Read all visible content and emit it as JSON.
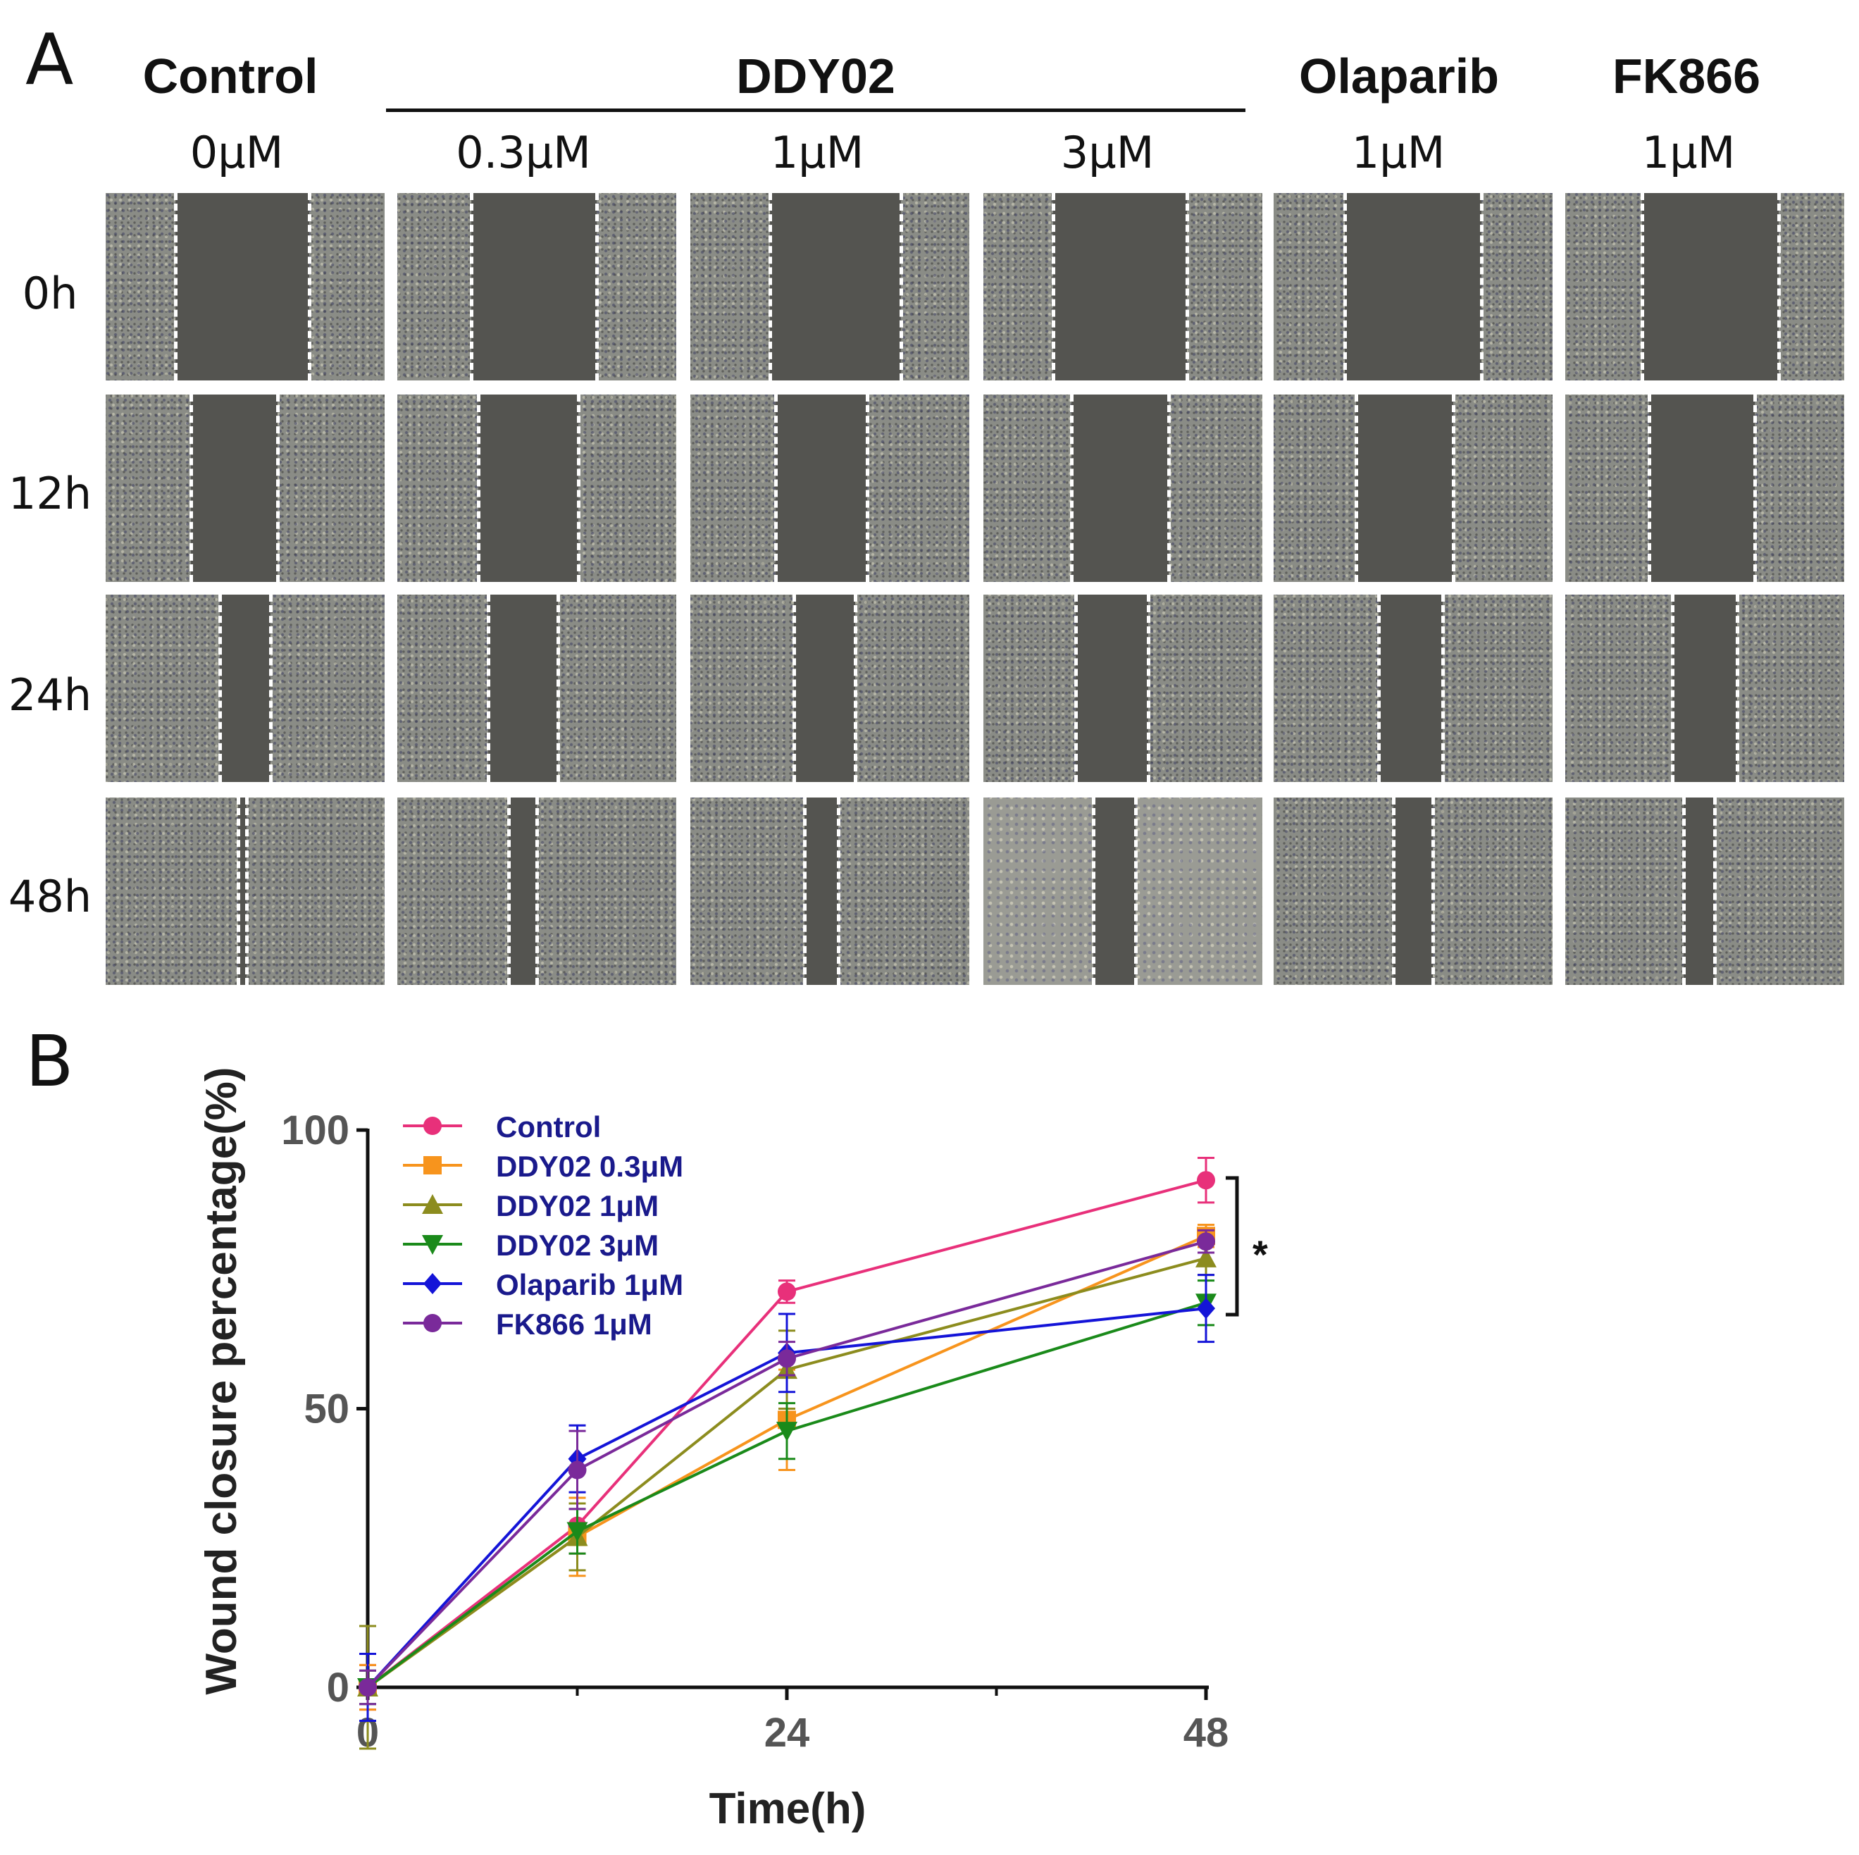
{
  "panel_a": {
    "letter": "A",
    "columns": [
      {
        "group": "Control",
        "concentration": "0μM"
      },
      {
        "group": "DDY02",
        "concentration": "0.3μM"
      },
      {
        "group": "DDY02",
        "concentration": "1μM"
      },
      {
        "group": "DDY02",
        "concentration": "3μM"
      },
      {
        "group": "Olaparib",
        "concentration": "1μM"
      },
      {
        "group": "FK866",
        "concentration": "1μM"
      }
    ],
    "headers": {
      "control": "Control",
      "ddy02": "DDY02",
      "olaparib": "Olaparib",
      "fk866": "FK866"
    },
    "concentrations": [
      "0μM",
      "0.3μM",
      "1μM",
      "3μM",
      "1μM",
      "1μM"
    ],
    "rows": [
      "0h",
      "12h",
      "24h",
      "48h"
    ],
    "wound_gap_fraction": [
      [
        0.48,
        0.45,
        0.47,
        0.48,
        0.49,
        0.49
      ],
      [
        0.31,
        0.36,
        0.33,
        0.35,
        0.35,
        0.38
      ],
      [
        0.18,
        0.25,
        0.22,
        0.26,
        0.23,
        0.23
      ],
      [
        0.03,
        0.1,
        0.12,
        0.15,
        0.14,
        0.11
      ]
    ],
    "wound_center_fraction": [
      [
        0.49,
        0.49,
        0.52,
        0.49,
        0.5,
        0.52
      ],
      [
        0.46,
        0.47,
        0.47,
        0.49,
        0.47,
        0.49
      ],
      [
        0.5,
        0.45,
        0.48,
        0.46,
        0.49,
        0.5
      ],
      [
        0.49,
        0.45,
        0.47,
        0.47,
        0.5,
        0.48
      ]
    ]
  },
  "panel_b": {
    "letter": "B",
    "significance": "*"
  },
  "chart_data": {
    "type": "line",
    "title": "",
    "xlabel": "Time(h)",
    "ylabel": "Wound closure percentage(%)",
    "xlim": [
      0,
      48
    ],
    "ylim": [
      0,
      100
    ],
    "x_ticks": [
      0,
      24,
      48
    ],
    "x_minor_ticks": [
      12,
      36
    ],
    "y_ticks": [
      0,
      50,
      100
    ],
    "x": [
      0,
      12,
      24,
      48
    ],
    "legend_position": "top-left",
    "series": [
      {
        "name": "Control",
        "color": "#e8307a",
        "marker": "circle",
        "values": [
          0,
          29,
          71,
          91
        ],
        "errors": [
          4,
          5,
          2,
          4
        ]
      },
      {
        "name": "DDY02 0.3μM",
        "color": "#f7941d",
        "marker": "square",
        "values": [
          0,
          27,
          48,
          81
        ],
        "errors": [
          4,
          7,
          9,
          2
        ]
      },
      {
        "name": "DDY02 1μM",
        "color": "#8c8c1e",
        "marker": "triangle-up",
        "values": [
          0,
          27,
          57,
          77
        ],
        "errors": [
          11,
          6,
          7,
          3
        ]
      },
      {
        "name": "DDY02 3μM",
        "color": "#1a8a1a",
        "marker": "triangle-down",
        "values": [
          0,
          28,
          46,
          69
        ],
        "errors": [
          3,
          4,
          5,
          4
        ]
      },
      {
        "name": "Olaparib 1μM",
        "color": "#1414d8",
        "marker": "diamond",
        "values": [
          0,
          41,
          60,
          68
        ],
        "errors": [
          6,
          6,
          7,
          6
        ]
      },
      {
        "name": "FK866 1μM",
        "color": "#7a2a9a",
        "marker": "circle",
        "values": [
          0,
          39,
          59,
          80
        ],
        "errors": [
          3,
          7,
          3,
          2
        ]
      }
    ]
  }
}
